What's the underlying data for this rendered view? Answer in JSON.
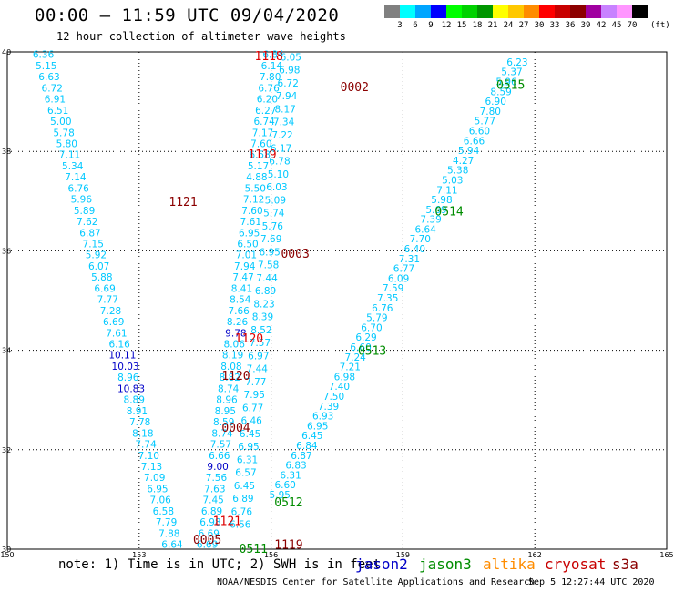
{
  "header": {
    "title": "00:00 – 11:59 UTC 09/04/2020",
    "subtitle": "12 hour collection of altimeter wave heights"
  },
  "colorbar": {
    "unit": "(ft)",
    "stops": [
      {
        "color": "#808080",
        "label": "3"
      },
      {
        "color": "#00ffff",
        "label": "6"
      },
      {
        "color": "#00a5ff",
        "label": "9"
      },
      {
        "color": "#0000ff",
        "label": "12"
      },
      {
        "color": "#00ff00",
        "label": "15"
      },
      {
        "color": "#00d200",
        "label": "18"
      },
      {
        "color": "#009600",
        "label": "21"
      },
      {
        "color": "#ffff00",
        "label": "24"
      },
      {
        "color": "#ffc800",
        "label": "27"
      },
      {
        "color": "#ff8c00",
        "label": "30"
      },
      {
        "color": "#ff0000",
        "label": "33"
      },
      {
        "color": "#c80000",
        "label": "36"
      },
      {
        "color": "#8c0000",
        "label": "39"
      },
      {
        "color": "#a000a0",
        "label": "42"
      },
      {
        "color": "#c882ff",
        "label": "45"
      },
      {
        "color": "#ff96ff",
        "label": "70"
      },
      {
        "color": "#000000",
        "label": ""
      }
    ]
  },
  "map": {
    "lon_range": [
      150,
      165
    ],
    "lat_range": [
      30,
      40
    ],
    "lon_ticks": [
      "150",
      "153",
      "156",
      "159",
      "162",
      "165"
    ],
    "lat_ticks": [
      "30",
      "32",
      "34",
      "36",
      "38",
      "40"
    ],
    "grid": true,
    "tracks": [
      {
        "satellite": "jason2",
        "color": "#0000c8",
        "start": [
          150.82,
          39.95
        ],
        "end": [
          153.75,
          30.1
        ],
        "values": [
          "6.36",
          "5.15",
          "6.63",
          "6.72",
          "6.91",
          "6.51",
          "5.00",
          "5.78",
          "5.80",
          "7.11",
          "5.34",
          "7.14",
          "6.76",
          "5.96",
          "5.89",
          "7.62",
          "6.87",
          "7.15",
          "5.92",
          "6.07",
          "5.88",
          "6.69",
          "7.77",
          "7.28",
          "6.69",
          "7.61",
          "6.16",
          "10.11",
          "10.03",
          "8.96",
          "10.83",
          "8.89",
          "8.91",
          "7.78",
          "8.18",
          "7.74",
          "7.10",
          "7.13",
          "7.09",
          "6.95",
          "7.06",
          "6.58",
          "7.79",
          "7.88",
          "6.64"
        ]
      },
      {
        "satellite": "jason3",
        "color": "#008c00",
        "start": [
          156.05,
          39.95
        ],
        "end": [
          154.55,
          30.1
        ],
        "values": [
          "6.84",
          "6.14",
          "7.80",
          "6.76",
          "6.20",
          "6.27",
          "6.74",
          "7.17",
          "7.60",
          "6.58",
          "5.17",
          "4.88",
          "5.50",
          "7.12",
          "7.60",
          "7.61",
          "6.95",
          "6.50",
          "7.01",
          "7.94",
          "7.47",
          "8.41",
          "8.54",
          "7.66",
          "8.26",
          "9.78",
          "8.06",
          "8.19",
          "8.08",
          "8.82",
          "8.74",
          "8.96",
          "8.95",
          "8.59",
          "8.74",
          "7.57",
          "6.66",
          "9.00",
          "7.56",
          "7.63",
          "7.45",
          "6.89",
          "6.98",
          "6.69",
          "6.69"
        ]
      },
      {
        "satellite": "cryosat",
        "color": "#c80000",
        "start": [
          156.45,
          39.9
        ],
        "end": [
          155.3,
          30.5
        ],
        "values": [
          "6.05",
          "6.98",
          "6.72",
          "7.94",
          "8.17",
          "7.34",
          "7.22",
          "6.17",
          "6.78",
          "5.10",
          "6.03",
          "5.09",
          "5.74",
          "5.76",
          "7.69",
          "6.95",
          "7.58",
          "7.44",
          "6.89",
          "8.23",
          "8.39",
          "8.52",
          "7.57",
          "6.97",
          "7.44",
          "7.77",
          "7.95",
          "6.77",
          "6.46",
          "6.45",
          "6.95",
          "6.31",
          "6.57",
          "6.45",
          "6.89",
          "6.76",
          "6.56"
        ]
      },
      {
        "satellite": "s3a",
        "color": "#8b0000",
        "start": [
          161.6,
          39.8
        ],
        "end": [
          156.2,
          31.1
        ],
        "values": [
          "6.23",
          "5.37",
          "5.96",
          "8.59",
          "6.90",
          "7.80",
          "5.77",
          "6.60",
          "6.66",
          "5.94",
          "4.27",
          "5.38",
          "5.03",
          "7.11",
          "5.98",
          "5.69",
          "7.39",
          "6.64",
          "7.70",
          "6.40",
          "7.31",
          "6.77",
          "6.09",
          "7.59",
          "7.35",
          "6.76",
          "5.79",
          "6.70",
          "6.29",
          "6.60",
          "7.24",
          "7.21",
          "6.98",
          "7.40",
          "7.50",
          "7.39",
          "6.93",
          "6.95",
          "6.45",
          "6.84",
          "6.87",
          "6.83",
          "6.31",
          "6.60",
          "5.95"
        ]
      }
    ],
    "passes": [
      {
        "label": "1118",
        "lon": 155.95,
        "lat": 39.93,
        "color": "#dd0000"
      },
      {
        "label": "0002",
        "lon": 157.9,
        "lat": 39.3,
        "color": "#8b0000"
      },
      {
        "label": "0515",
        "lon": 161.45,
        "lat": 39.35,
        "color": "#008c00"
      },
      {
        "label": "1119",
        "lon": 155.8,
        "lat": 37.95,
        "color": "#dd0000"
      },
      {
        "label": "1121",
        "lon": 154.0,
        "lat": 37.0,
        "color": "#8b0000"
      },
      {
        "label": "0514",
        "lon": 160.05,
        "lat": 36.8,
        "color": "#008c00"
      },
      {
        "label": "0003",
        "lon": 156.55,
        "lat": 35.95,
        "color": "#8b0000"
      },
      {
        "label": "1120",
        "lon": 155.5,
        "lat": 34.25,
        "color": "#dd0000"
      },
      {
        "label": "0513",
        "lon": 158.3,
        "lat": 34.0,
        "color": "#008c00"
      },
      {
        "label": "1120",
        "lon": 155.2,
        "lat": 33.5,
        "color": "#8b0000"
      },
      {
        "label": "0004",
        "lon": 155.2,
        "lat": 32.45,
        "color": "#8b0000"
      },
      {
        "label": "0512",
        "lon": 156.4,
        "lat": 30.95,
        "color": "#008c00"
      },
      {
        "label": "1121",
        "lon": 155.0,
        "lat": 30.58,
        "color": "#dd0000"
      },
      {
        "label": "0005",
        "lon": 154.55,
        "lat": 30.2,
        "color": "#8b0000"
      },
      {
        "label": "1119",
        "lon": 156.4,
        "lat": 30.1,
        "color": "#8b0000"
      },
      {
        "label": "0511",
        "lon": 155.6,
        "lat": 30.02,
        "color": "#008c00"
      }
    ]
  },
  "footer": {
    "note": "note: 1) Time is in UTC; 2) SWH is in feet",
    "satellites": [
      {
        "name": "jason2",
        "color": "#0000c8"
      },
      {
        "name": "jason3",
        "color": "#008c00"
      },
      {
        "name": "altika",
        "color": "#ff8c00"
      },
      {
        "name": "cryosat",
        "color": "#c80000"
      },
      {
        "name": "s3a",
        "color": "#8b0000"
      }
    ],
    "credit": "NOAA/NESDIS Center for Satellite Applications and Research",
    "timestamp": "Sep  5 12:27:44 UTC 2020"
  }
}
